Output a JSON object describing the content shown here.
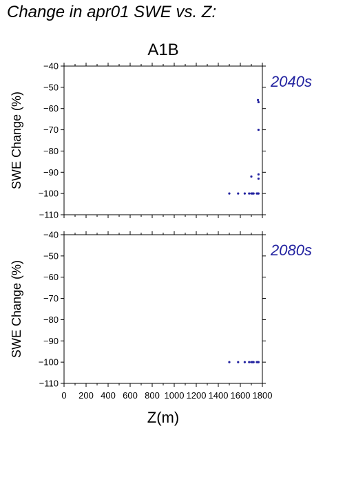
{
  "title": "Change in apr01 SWE vs. Z:",
  "chart_data": [
    {
      "type": "scatter",
      "scenario": "A1B",
      "period_label": "2040s",
      "xlabel": "",
      "ylabel": "SWE Change (%)",
      "xlim": [
        0,
        1800
      ],
      "ylim": [
        -110,
        -40
      ],
      "yticks": [
        -40,
        -50,
        -60,
        -70,
        -80,
        -90,
        -100,
        -110
      ],
      "points": [
        {
          "x": 1500,
          "y": -100
        },
        {
          "x": 1580,
          "y": -100
        },
        {
          "x": 1640,
          "y": -100
        },
        {
          "x": 1680,
          "y": -100
        },
        {
          "x": 1700,
          "y": -100
        },
        {
          "x": 1710,
          "y": -100
        },
        {
          "x": 1720,
          "y": -100
        },
        {
          "x": 1750,
          "y": -100
        },
        {
          "x": 1760,
          "y": -100
        },
        {
          "x": 1765,
          "y": -100
        },
        {
          "x": 1700,
          "y": -92
        },
        {
          "x": 1765,
          "y": -91
        },
        {
          "x": 1765,
          "y": -93
        },
        {
          "x": 1765,
          "y": -70
        },
        {
          "x": 1760,
          "y": -56
        },
        {
          "x": 1765,
          "y": -57
        }
      ],
      "color": "#2222a0"
    },
    {
      "type": "scatter",
      "period_label": "2080s",
      "xlabel": "Z(m)",
      "ylabel": "SWE Change (%)",
      "xlim": [
        0,
        1800
      ],
      "ylim": [
        -110,
        -40
      ],
      "xticks": [
        0,
        200,
        400,
        600,
        800,
        1000,
        1200,
        1400,
        1600,
        1800
      ],
      "yticks": [
        -40,
        -50,
        -60,
        -70,
        -80,
        -90,
        -100,
        -110
      ],
      "points": [
        {
          "x": 1500,
          "y": -100
        },
        {
          "x": 1580,
          "y": -100
        },
        {
          "x": 1640,
          "y": -100
        },
        {
          "x": 1680,
          "y": -100
        },
        {
          "x": 1700,
          "y": -100
        },
        {
          "x": 1710,
          "y": -100
        },
        {
          "x": 1720,
          "y": -100
        },
        {
          "x": 1750,
          "y": -100
        },
        {
          "x": 1760,
          "y": -100
        },
        {
          "x": 1765,
          "y": -100
        }
      ],
      "color": "#2222a0"
    }
  ]
}
